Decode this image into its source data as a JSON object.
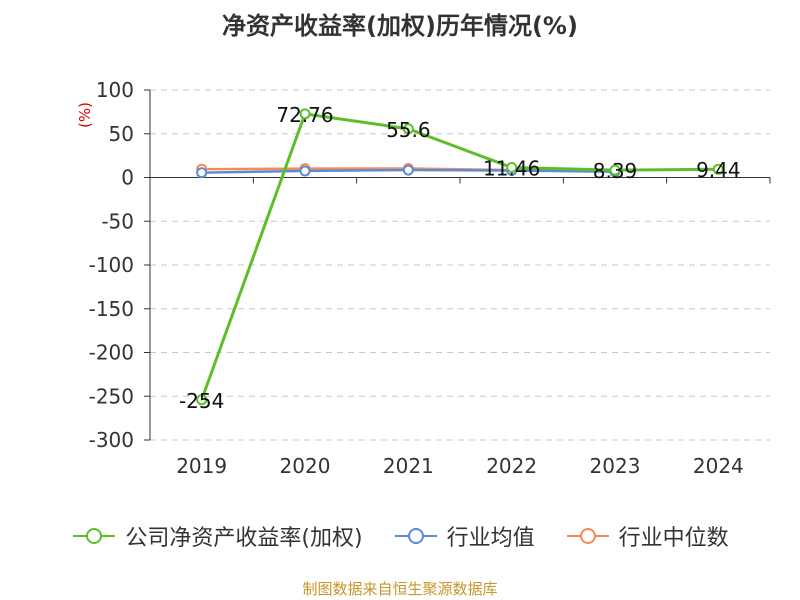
{
  "chart_data": {
    "type": "line",
    "title": "净资产收益率(加权)历年情况(%)",
    "ylabel": "(%)",
    "xlabel": "",
    "categories": [
      "2019",
      "2020",
      "2021",
      "2022",
      "2023",
      "2024"
    ],
    "ylim": [
      -300,
      100
    ],
    "yticks": [
      100,
      50,
      0,
      -50,
      -100,
      -150,
      -200,
      -250,
      -300
    ],
    "grid": true,
    "legend_position": "bottom",
    "series": [
      {
        "name": "公司净资产收益率(加权)",
        "color": "#5cbf2a",
        "values": [
          -254,
          72.76,
          55.6,
          11.46,
          8.39,
          9.44
        ],
        "labels": [
          "-254",
          "72.76",
          "55.6",
          "11.46",
          "8.39",
          "9.44"
        ]
      },
      {
        "name": "行业均值",
        "color": "#5b8bd6",
        "values": [
          5.5,
          7.5,
          8.5,
          8.0,
          6.5,
          null
        ]
      },
      {
        "name": "行业中位数",
        "color": "#f28c5a",
        "values": [
          9.5,
          10.2,
          10.3,
          8.5,
          7.0,
          null
        ]
      }
    ]
  },
  "source_text": "制图数据来自恒生聚源数据库"
}
